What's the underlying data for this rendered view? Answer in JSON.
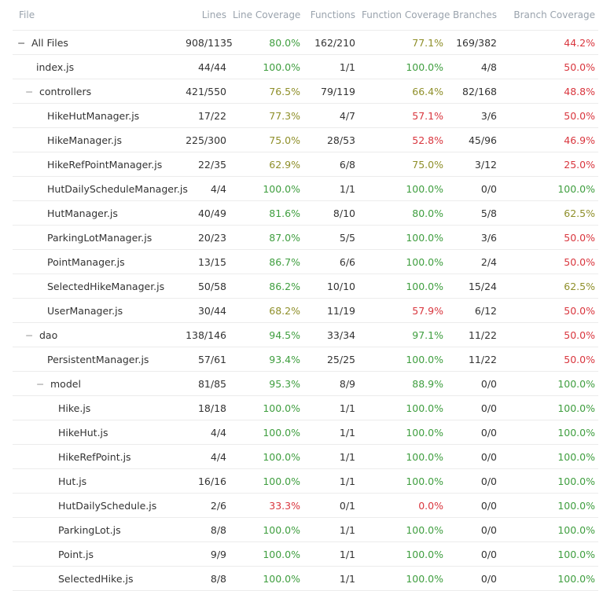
{
  "columns": [
    "File",
    "Lines",
    "Line Coverage",
    "Functions",
    "Function Coverage",
    "Branches",
    "Branch Coverage"
  ],
  "rows": [
    {
      "file": "All Files",
      "lines": "908/1135",
      "line_cov": "80.0%",
      "funcs": "162/210",
      "func_cov": "77.1%",
      "branches": "169/382",
      "branch_cov": "44.2%"
    },
    {
      "file": "index.js",
      "lines": "44/44",
      "line_cov": "100.0%",
      "funcs": "1/1",
      "func_cov": "100.0%",
      "branches": "4/8",
      "branch_cov": "50.0%"
    },
    {
      "file": "controllers",
      "lines": "421/550",
      "line_cov": "76.5%",
      "funcs": "79/119",
      "func_cov": "66.4%",
      "branches": "82/168",
      "branch_cov": "48.8%"
    },
    {
      "file": "HikeHutManager.js",
      "lines": "17/22",
      "line_cov": "77.3%",
      "funcs": "4/7",
      "func_cov": "57.1%",
      "branches": "3/6",
      "branch_cov": "50.0%"
    },
    {
      "file": "HikeManager.js",
      "lines": "225/300",
      "line_cov": "75.0%",
      "funcs": "28/53",
      "func_cov": "52.8%",
      "branches": "45/96",
      "branch_cov": "46.9%"
    },
    {
      "file": "HikeRefPointManager.js",
      "lines": "22/35",
      "line_cov": "62.9%",
      "funcs": "6/8",
      "func_cov": "75.0%",
      "branches": "3/12",
      "branch_cov": "25.0%"
    },
    {
      "file": "HutDailyScheduleManager.js",
      "lines": "4/4",
      "line_cov": "100.0%",
      "funcs": "1/1",
      "func_cov": "100.0%",
      "branches": "0/0",
      "branch_cov": "100.0%"
    },
    {
      "file": "HutManager.js",
      "lines": "40/49",
      "line_cov": "81.6%",
      "funcs": "8/10",
      "func_cov": "80.0%",
      "branches": "5/8",
      "branch_cov": "62.5%"
    },
    {
      "file": "ParkingLotManager.js",
      "lines": "20/23",
      "line_cov": "87.0%",
      "funcs": "5/5",
      "func_cov": "100.0%",
      "branches": "3/6",
      "branch_cov": "50.0%"
    },
    {
      "file": "PointManager.js",
      "lines": "13/15",
      "line_cov": "86.7%",
      "funcs": "6/6",
      "func_cov": "100.0%",
      "branches": "2/4",
      "branch_cov": "50.0%"
    },
    {
      "file": "SelectedHikeManager.js",
      "lines": "50/58",
      "line_cov": "86.2%",
      "funcs": "10/10",
      "func_cov": "100.0%",
      "branches": "15/24",
      "branch_cov": "62.5%"
    },
    {
      "file": "UserManager.js",
      "lines": "30/44",
      "line_cov": "68.2%",
      "funcs": "11/19",
      "func_cov": "57.9%",
      "branches": "6/12",
      "branch_cov": "50.0%"
    },
    {
      "file": "dao",
      "lines": "138/146",
      "line_cov": "94.5%",
      "funcs": "33/34",
      "func_cov": "97.1%",
      "branches": "11/22",
      "branch_cov": "50.0%"
    },
    {
      "file": "PersistentManager.js",
      "lines": "57/61",
      "line_cov": "93.4%",
      "funcs": "25/25",
      "func_cov": "100.0%",
      "branches": "11/22",
      "branch_cov": "50.0%"
    },
    {
      "file": "model",
      "lines": "81/85",
      "line_cov": "95.3%",
      "funcs": "8/9",
      "func_cov": "88.9%",
      "branches": "0/0",
      "branch_cov": "100.0%"
    },
    {
      "file": "Hike.js",
      "lines": "18/18",
      "line_cov": "100.0%",
      "funcs": "1/1",
      "func_cov": "100.0%",
      "branches": "0/0",
      "branch_cov": "100.0%"
    },
    {
      "file": "HikeHut.js",
      "lines": "4/4",
      "line_cov": "100.0%",
      "funcs": "1/1",
      "func_cov": "100.0%",
      "branches": "0/0",
      "branch_cov": "100.0%"
    },
    {
      "file": "HikeRefPoint.js",
      "lines": "4/4",
      "line_cov": "100.0%",
      "funcs": "1/1",
      "func_cov": "100.0%",
      "branches": "0/0",
      "branch_cov": "100.0%"
    },
    {
      "file": "Hut.js",
      "lines": "16/16",
      "line_cov": "100.0%",
      "funcs": "1/1",
      "func_cov": "100.0%",
      "branches": "0/0",
      "branch_cov": "100.0%"
    },
    {
      "file": "HutDailySchedule.js",
      "lines": "2/6",
      "line_cov": "33.3%",
      "funcs": "0/1",
      "func_cov": "0.0%",
      "branches": "0/0",
      "branch_cov": "100.0%"
    },
    {
      "file": "ParkingLot.js",
      "lines": "8/8",
      "line_cov": "100.0%",
      "funcs": "1/1",
      "func_cov": "100.0%",
      "branches": "0/0",
      "branch_cov": "100.0%"
    },
    {
      "file": "Point.js",
      "lines": "9/9",
      "line_cov": "100.0%",
      "funcs": "1/1",
      "func_cov": "100.0%",
      "branches": "0/0",
      "branch_cov": "100.0%"
    },
    {
      "file": "SelectedHike.js",
      "lines": "8/8",
      "line_cov": "100.0%",
      "funcs": "1/1",
      "func_cov": "100.0%",
      "branches": "0/0",
      "branch_cov": "100.0%"
    }
  ],
  "toggle_glyph": "−",
  "colors": {
    "green": "#3f9e3f",
    "olive": "#8f8f2a",
    "red": "#d9363e"
  }
}
